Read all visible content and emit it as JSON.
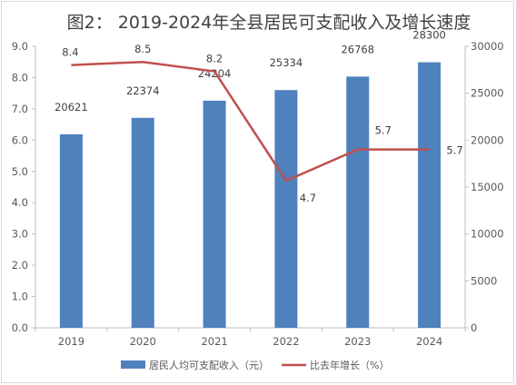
{
  "chart_data": {
    "type": "bar",
    "title": "图2： 2019-2024年全县居民可支配收入及增长速度",
    "categories": [
      "2019",
      "2020",
      "2021",
      "2022",
      "2023",
      "2024"
    ],
    "series": [
      {
        "name": "居民人均可支配收入（元）",
        "type": "bar",
        "axis": "right",
        "color": "#4f81bd",
        "values": [
          20621,
          22374,
          24204,
          25334,
          26768,
          28300
        ],
        "labels": [
          "20621",
          "22374",
          "24204",
          "25334",
          "26768",
          "28300"
        ]
      },
      {
        "name": "比去年增长（%）",
        "type": "line",
        "axis": "left",
        "color": "#c0504d",
        "values": [
          8.4,
          8.5,
          8.2,
          4.7,
          5.7,
          5.7
        ],
        "labels": [
          "8.4",
          "8.5",
          "8.2",
          "4.7",
          "5.7",
          "5.7"
        ]
      }
    ],
    "y_left": {
      "ylim": [
        0,
        9
      ],
      "ticks": [
        "0.0",
        "1.0",
        "2.0",
        "3.0",
        "4.0",
        "5.0",
        "6.0",
        "7.0",
        "8.0",
        "9.0"
      ]
    },
    "y_right": {
      "ylim": [
        0,
        30000
      ],
      "ticks": [
        "0",
        "5000",
        "10000",
        "15000",
        "20000",
        "25000",
        "30000"
      ]
    },
    "grid": false,
    "legend_position": "bottom"
  }
}
